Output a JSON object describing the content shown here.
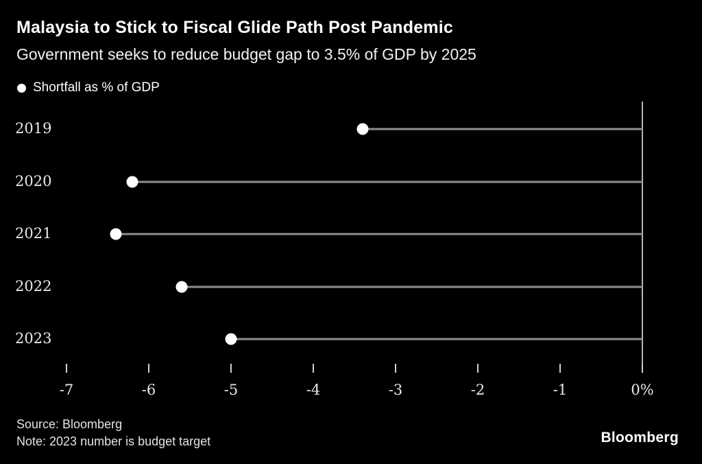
{
  "header": {
    "title": "Malaysia to Stick to Fiscal Glide Path Post Pandemic",
    "subtitle": "Government seeks to reduce budget gap to 3.5% of GDP by 2025"
  },
  "legend": {
    "label": "Shortfall as % of GDP"
  },
  "chart_data": {
    "type": "scatter",
    "variant": "horizontal-lollipop",
    "title": "Malaysia to Stick to Fiscal Glide Path Post Pandemic",
    "subtitle": "Government seeks to reduce budget gap to 3.5% of GDP by 2025",
    "series_name": "Shortfall as % of GDP",
    "categories": [
      "2019",
      "2020",
      "2021",
      "2022",
      "2023"
    ],
    "values": [
      -3.4,
      -6.2,
      -6.4,
      -5.6,
      -5.0
    ],
    "unit": "% of GDP",
    "xlim": [
      -7,
      0
    ],
    "x_ticks": [
      {
        "value": -7,
        "label": "-7"
      },
      {
        "value": -6,
        "label": "-6"
      },
      {
        "value": -5,
        "label": "-5"
      },
      {
        "value": -4,
        "label": "-4"
      },
      {
        "value": -3,
        "label": "-3"
      },
      {
        "value": -2,
        "label": "-2"
      },
      {
        "value": -1,
        "label": "-1"
      },
      {
        "value": 0,
        "label": "0%"
      }
    ],
    "baseline_axis": "right-at-zero",
    "grid": false,
    "legend_position": "top-left",
    "colors": {
      "background": "#000000",
      "dot": "#ffffff",
      "line": "#8f8f8f",
      "axis": "#b8b8b8",
      "tick": "#cfcfcf",
      "text": "#e9e9e9"
    }
  },
  "footer": {
    "source": "Source: Bloomberg",
    "note": "Note: 2023 number is budget target",
    "brand": "Bloomberg"
  }
}
